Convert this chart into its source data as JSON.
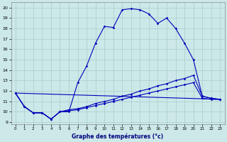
{
  "xlabel": "Graphe des températures (°c)",
  "xlim": [
    -0.5,
    23.5
  ],
  "ylim": [
    8.8,
    20.5
  ],
  "yticks": [
    9,
    10,
    11,
    12,
    13,
    14,
    15,
    16,
    17,
    18,
    19,
    20
  ],
  "xticks": [
    0,
    1,
    2,
    3,
    4,
    5,
    6,
    7,
    8,
    9,
    10,
    11,
    12,
    13,
    14,
    15,
    16,
    17,
    18,
    19,
    20,
    21,
    22,
    23
  ],
  "bg_color": "#cce8e8",
  "grid_color": "#aacccc",
  "line_color": "#0000bb",
  "line1_x": [
    0,
    1,
    2,
    3,
    4,
    5,
    6,
    7,
    8,
    9,
    10,
    11,
    12,
    13,
    14,
    15,
    16,
    17,
    18,
    19,
    20,
    21,
    22,
    23
  ],
  "line1_y": [
    11.8,
    10.5,
    9.9,
    9.9,
    9.3,
    10.0,
    10.0,
    12.8,
    14.4,
    16.6,
    18.2,
    18.1,
    19.8,
    19.9,
    19.8,
    19.4,
    18.5,
    19.0,
    18.0,
    16.6,
    15.0,
    11.5,
    11.3,
    11.2
  ],
  "line2_x": [
    0,
    1,
    2,
    3,
    4,
    5,
    6,
    7,
    8,
    9,
    10,
    11,
    12,
    13,
    14,
    15,
    16,
    17,
    18,
    19,
    20,
    21,
    22,
    23
  ],
  "line2_y": [
    11.8,
    10.5,
    9.9,
    9.9,
    9.3,
    10.0,
    10.2,
    10.3,
    10.5,
    10.8,
    11.0,
    11.2,
    11.5,
    11.7,
    12.0,
    12.2,
    12.5,
    12.7,
    13.0,
    13.2,
    13.5,
    11.5,
    11.3,
    11.2
  ],
  "line3_x": [
    0,
    23
  ],
  "line3_y": [
    11.8,
    11.2
  ],
  "line4_x": [
    0,
    1,
    2,
    3,
    4,
    5,
    6,
    7,
    8,
    9,
    10,
    11,
    12,
    13,
    14,
    15,
    16,
    17,
    18,
    19,
    20,
    21,
    22,
    23
  ],
  "line4_y": [
    11.8,
    10.5,
    9.9,
    9.9,
    9.3,
    10.0,
    10.1,
    10.2,
    10.4,
    10.6,
    10.8,
    11.0,
    11.2,
    11.4,
    11.6,
    11.8,
    12.0,
    12.2,
    12.4,
    12.6,
    12.8,
    11.3,
    11.2,
    11.2
  ]
}
